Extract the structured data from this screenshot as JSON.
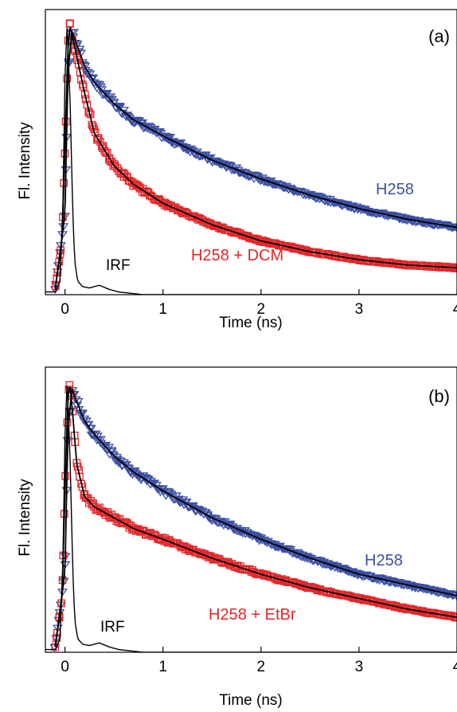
{
  "colors": {
    "blue": "#3b4fa3",
    "red": "#e5262a",
    "fit": "#000000",
    "irf": "#000000",
    "axis": "#000000"
  },
  "chart_data": [
    {
      "type": "scatter",
      "panel_label": "(a)",
      "xlabel": "Time (ns)",
      "ylabel": "Fl. Intensity",
      "xlim": [
        -0.2,
        4.0
      ],
      "ylim": [
        0,
        1.06
      ],
      "x_ticks": [
        "0",
        "1",
        "2",
        "3",
        "4"
      ],
      "y_ticks_labeled": false,
      "grid": false,
      "annotations": [
        {
          "text": "H258",
          "color": "blue"
        },
        {
          "text": "H258 + DCM",
          "color": "red"
        },
        {
          "text": "IRF",
          "color": "black"
        }
      ],
      "series": [
        {
          "name": "H258",
          "marker": "triangle-down",
          "color": "blue",
          "fit_line": true,
          "x": [
            -0.1,
            0.0,
            0.03,
            0.07,
            0.1,
            0.2,
            0.3,
            0.5,
            0.7,
            1.0,
            1.5,
            2.0,
            2.5,
            3.0,
            3.5,
            4.0
          ],
          "y": [
            0.02,
            0.3,
            0.82,
            0.98,
            0.95,
            0.85,
            0.79,
            0.71,
            0.65,
            0.59,
            0.5,
            0.43,
            0.37,
            0.32,
            0.28,
            0.25
          ]
        },
        {
          "name": "H258 + DCM",
          "marker": "square",
          "color": "red",
          "fit_line": true,
          "x": [
            -0.1,
            -0.03,
            0.0,
            0.03,
            0.05,
            0.1,
            0.2,
            0.3,
            0.5,
            0.7,
            1.0,
            1.5,
            2.0,
            2.5,
            3.0,
            3.5,
            4.0
          ],
          "y": [
            0.02,
            0.2,
            0.55,
            0.92,
            1.0,
            0.92,
            0.75,
            0.6,
            0.48,
            0.41,
            0.34,
            0.26,
            0.2,
            0.16,
            0.13,
            0.11,
            0.1
          ]
        },
        {
          "name": "IRF",
          "marker": "none",
          "color": "black",
          "fit_line": false,
          "x": [
            -0.2,
            -0.1,
            -0.05,
            -0.02,
            0.0,
            0.02,
            0.05,
            0.08,
            0.1,
            0.13,
            0.18,
            0.25,
            0.35,
            0.45,
            0.55,
            0.8,
            4.0
          ],
          "y": [
            0.01,
            0.01,
            0.05,
            0.35,
            0.8,
            1.0,
            0.75,
            0.3,
            0.12,
            0.05,
            0.03,
            0.025,
            0.035,
            0.02,
            0.01,
            0.0,
            0.0
          ]
        }
      ]
    },
    {
      "type": "scatter",
      "panel_label": "(b)",
      "xlabel": "Time (ns)",
      "ylabel": "Fl. Intensity",
      "xlim": [
        -0.2,
        4.0
      ],
      "ylim": [
        0,
        1.06
      ],
      "x_ticks": [
        "0",
        "1",
        "2",
        "3",
        "4"
      ],
      "y_ticks_labeled": false,
      "grid": false,
      "annotations": [
        {
          "text": "H258",
          "color": "blue"
        },
        {
          "text": "H258 + EtBr",
          "color": "red"
        },
        {
          "text": "IRF",
          "color": "black"
        }
      ],
      "series": [
        {
          "name": "H258",
          "marker": "triangle-down",
          "color": "blue",
          "fit_line": true,
          "x": [
            -0.1,
            0.0,
            0.03,
            0.07,
            0.1,
            0.2,
            0.3,
            0.5,
            0.7,
            1.0,
            1.5,
            2.0,
            2.5,
            3.0,
            3.5,
            4.0
          ],
          "y": [
            0.02,
            0.3,
            0.82,
            0.98,
            0.95,
            0.86,
            0.81,
            0.73,
            0.67,
            0.6,
            0.5,
            0.42,
            0.35,
            0.29,
            0.25,
            0.21
          ]
        },
        {
          "name": "H258 + EtBr",
          "marker": "square",
          "color": "red",
          "fit_line": true,
          "x": [
            -0.1,
            -0.03,
            0.0,
            0.03,
            0.05,
            0.08,
            0.12,
            0.2,
            0.3,
            0.5,
            0.7,
            1.0,
            1.5,
            2.0,
            2.5,
            3.0,
            3.5,
            4.0
          ],
          "y": [
            0.02,
            0.2,
            0.6,
            0.95,
            1.0,
            0.88,
            0.7,
            0.58,
            0.54,
            0.5,
            0.46,
            0.42,
            0.35,
            0.29,
            0.24,
            0.2,
            0.16,
            0.13
          ]
        },
        {
          "name": "IRF",
          "marker": "none",
          "color": "black",
          "fit_line": false,
          "x": [
            -0.2,
            -0.1,
            -0.05,
            -0.02,
            0.0,
            0.02,
            0.05,
            0.08,
            0.1,
            0.13,
            0.18,
            0.25,
            0.35,
            0.45,
            0.55,
            0.8,
            4.0
          ],
          "y": [
            0.01,
            0.01,
            0.05,
            0.35,
            0.8,
            1.0,
            0.75,
            0.3,
            0.12,
            0.05,
            0.03,
            0.025,
            0.035,
            0.02,
            0.01,
            0.0,
            0.0
          ]
        }
      ]
    }
  ]
}
